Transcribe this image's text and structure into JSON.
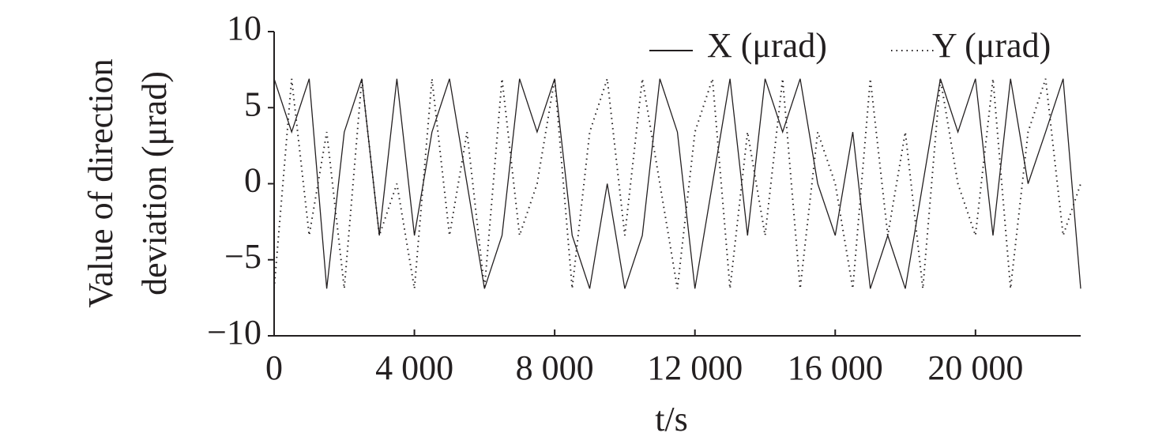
{
  "chart_data": {
    "type": "line",
    "x_label": "t/s",
    "y_label": [
      "Value of direction",
      "deviation (μrad)"
    ],
    "x": [
      0,
      500,
      1000,
      1500,
      2000,
      2500,
      3000,
      3500,
      4000,
      4500,
      5000,
      5500,
      6000,
      6500,
      7000,
      7500,
      8000,
      8500,
      9000,
      9500,
      10000,
      10500,
      11000,
      11500,
      12000,
      12500,
      13000,
      13500,
      14000,
      14500,
      15000,
      15500,
      16000,
      16500,
      17000,
      17500,
      18000,
      18500,
      19000,
      19500,
      20000,
      20500,
      21000,
      21500,
      22000,
      22500,
      23000
    ],
    "series": [
      {
        "name": "X (μrad)",
        "color": "#231f20",
        "linestyle": "solid",
        "values": [
          6.9,
          3.4,
          6.9,
          -6.9,
          3.4,
          6.9,
          -3.4,
          6.9,
          -3.4,
          3.4,
          6.9,
          0,
          -6.9,
          -3.4,
          6.9,
          3.4,
          6.9,
          -3.4,
          -6.9,
          0,
          -6.9,
          -3.4,
          6.9,
          3.4,
          -6.9,
          0,
          6.9,
          -3.4,
          6.9,
          3.4,
          6.9,
          0,
          -3.4,
          3.4,
          -6.9,
          -3.4,
          -6.9,
          0,
          6.9,
          3.4,
          6.9,
          -3.4,
          6.9,
          0,
          3.4,
          6.9,
          -6.9
        ]
      },
      {
        "name": "Y (μrad)",
        "color": "#231f20",
        "linestyle": "dotted",
        "values": [
          -6.9,
          6.9,
          -3.4,
          3.4,
          -6.9,
          6.9,
          -3.4,
          0,
          -6.9,
          6.9,
          -3.4,
          3.4,
          -6.9,
          6.9,
          -3.4,
          0,
          6.9,
          -6.9,
          3.4,
          6.9,
          -3.4,
          6.9,
          0,
          -6.9,
          3.4,
          6.9,
          -6.9,
          3.4,
          -3.4,
          6.9,
          -6.9,
          3.4,
          0,
          -6.9,
          6.9,
          -3.4,
          3.4,
          -6.9,
          6.9,
          0,
          -3.4,
          6.9,
          -6.9,
          3.4,
          6.9,
          -3.4,
          0
        ]
      }
    ],
    "xlim": [
      0,
      23000
    ],
    "xticks": [
      0,
      {
        "value": 4000,
        "label": "4 000"
      },
      {
        "value": 8000,
        "label": "8 000"
      },
      {
        "value": 12000,
        "label": "12 000"
      },
      {
        "value": 16000,
        "label": "16 000"
      },
      {
        "value": 20000,
        "label": "20 000"
      }
    ],
    "ylim": [
      -10,
      10
    ],
    "yticks": [
      {
        "value": -10,
        "label": "−10"
      },
      {
        "value": -5,
        "label": "−5"
      },
      0,
      5,
      10
    ],
    "grid": false,
    "legend": "top-right"
  }
}
